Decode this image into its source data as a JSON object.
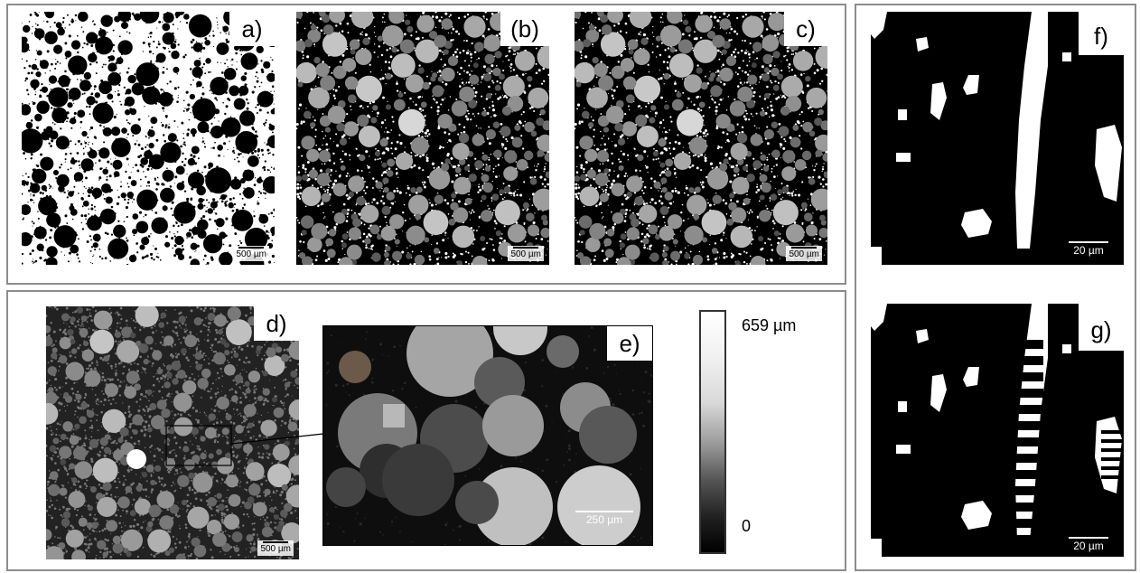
{
  "panels": {
    "a": {
      "label": "a)",
      "scale": "500 µm"
    },
    "b": {
      "label": "(b)",
      "scale": "500 µm"
    },
    "c": {
      "label": "c)",
      "scale": "500 µm"
    },
    "d": {
      "label": "d)",
      "scale": "500 µm"
    },
    "e": {
      "label": "e)",
      "scale": "250 µm"
    },
    "f": {
      "label": "f)",
      "scale": "20 µm"
    },
    "g": {
      "label": "g)",
      "scale": "20 µm"
    }
  },
  "colorbar": {
    "max_label": "659 µm",
    "min_label": "0"
  },
  "colors": {
    "frame": "#8c8c8c",
    "background": "#ffffff"
  }
}
